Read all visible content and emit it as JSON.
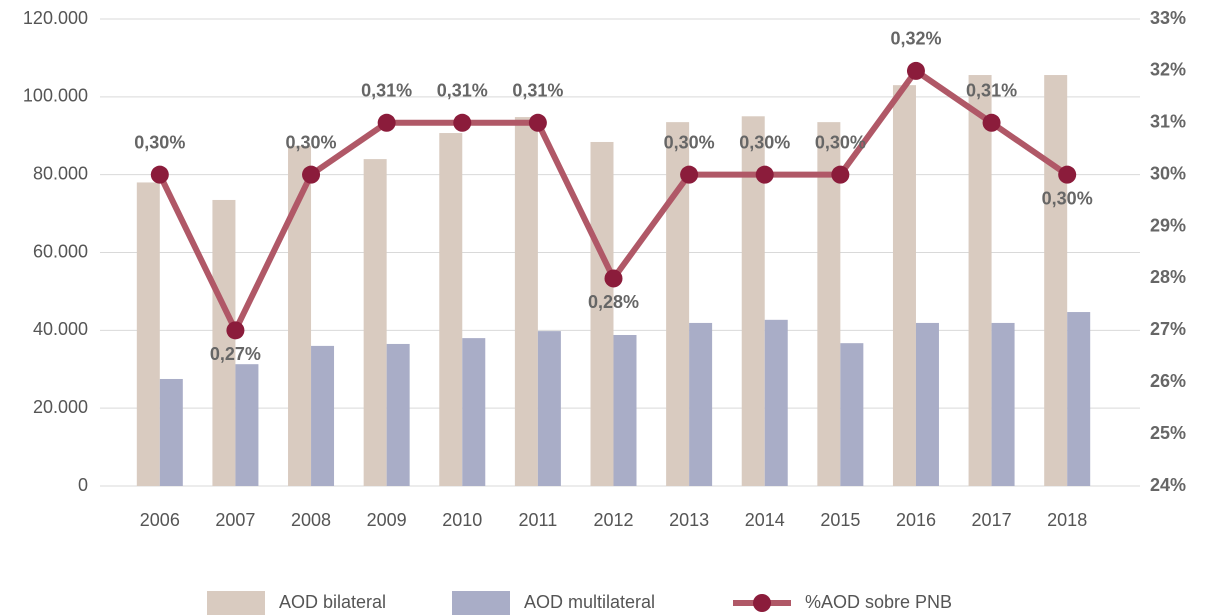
{
  "chart_data": {
    "type": "bar-line",
    "categories": [
      "2006",
      "2007",
      "2008",
      "2009",
      "2010",
      "2011",
      "2012",
      "2013",
      "2014",
      "2015",
      "2016",
      "2017",
      "2018"
    ],
    "series": [
      {
        "name": "AOD bilateral",
        "type": "bar",
        "color": "#d9cbc0",
        "values": [
          78000,
          73500,
          87400,
          84000,
          90700,
          94800,
          88400,
          93500,
          95000,
          93500,
          103000,
          105600,
          105600
        ]
      },
      {
        "name": "AOD multilateral",
        "type": "bar",
        "color": "#a9adc7",
        "values": [
          27500,
          31300,
          36000,
          36500,
          38000,
          39800,
          38800,
          41900,
          42700,
          36700,
          41900,
          41900,
          44700
        ]
      },
      {
        "name": "%AOD sobre PNB",
        "type": "line",
        "axis": "y2",
        "color": "#b05867",
        "marker_color": "#8b1c3b",
        "values": [
          30,
          27,
          30,
          31,
          31,
          31,
          28,
          30,
          30,
          30,
          32,
          31,
          30
        ],
        "value_labels": [
          "0,30%",
          "0,27%",
          "0,30%",
          "0,31%",
          "0,31%",
          "0,31%",
          "0,28%",
          "0,30%",
          "0,30%",
          "0,30%",
          "0,32%",
          "0,31%",
          "0,30%"
        ]
      }
    ],
    "ylim": [
      0,
      120000
    ],
    "yticks": [
      0,
      {
        "value": 20000,
        "label": "20.000"
      },
      {
        "value": 40000,
        "label": "40.000"
      },
      {
        "value": 60000,
        "label": "60.000"
      },
      {
        "value": 80000,
        "label": "80.000"
      },
      {
        "value": 100000,
        "label": "100.000"
      },
      {
        "value": 120000,
        "label": "120.000"
      }
    ],
    "y2lim": [
      24,
      33
    ],
    "y2ticks": [
      {
        "value": 24,
        "label": "24%"
      },
      {
        "value": 25,
        "label": "25%"
      },
      {
        "value": 26,
        "label": "26%"
      },
      {
        "value": 27,
        "label": "27%"
      },
      {
        "value": 28,
        "label": "28%"
      },
      {
        "value": 29,
        "label": "29%"
      },
      {
        "value": 30,
        "label": "30%"
      },
      {
        "value": 31,
        "label": "31%"
      },
      {
        "value": 32,
        "label": "32%"
      },
      {
        "value": 33,
        "label": "33%"
      }
    ],
    "grid": true,
    "legend": "bottom"
  }
}
